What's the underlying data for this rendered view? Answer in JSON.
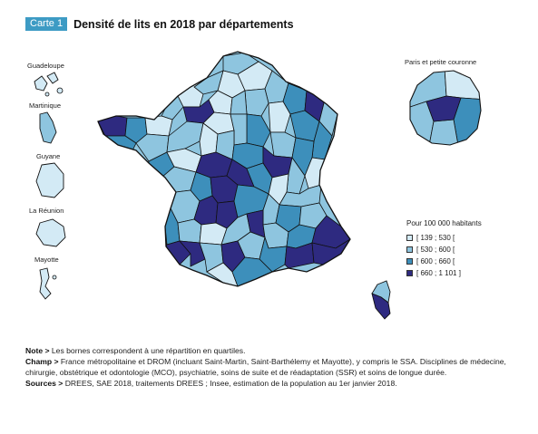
{
  "header": {
    "badge": "Carte 1",
    "title": "Densité de lits en 2018 par départements"
  },
  "insets": {
    "guadeloupe": "Guadeloupe",
    "martinique": "Martinique",
    "guyane": "Guyane",
    "reunion": "La Réunion",
    "mayotte": "Mayotte",
    "paris": "Paris et petite couronne"
  },
  "legend": {
    "title": "Pour 100 000 habitants",
    "items": [
      {
        "label": "[ 139 ; 530 [",
        "color": "#d3eaf5"
      },
      {
        "label": "[ 530 ; 600 [",
        "color": "#8ec5df"
      },
      {
        "label": "[ 600 ; 660 [",
        "color": "#3d8fbb"
      },
      {
        "label": "[ 660 ; 1 101 ]",
        "color": "#2e2a80"
      }
    ]
  },
  "notes": {
    "note_label": "Note >",
    "note_text": " Les bornes correspondent à une répartition en quartiles.",
    "champ_label": "Champ >",
    "champ_text": " France métropolitaine et DROM (incluant Saint-Martin, Saint-Barthélemy et Mayotte), y compris le SSA. Disciplines de médecine, chirurgie, obstétrique et odontologie (MCO), psychiatrie, soins de suite et de réadaptation (SSR) et soins de longue durée.",
    "sources_label": "Sources >",
    "sources_text": " DREES, SAE 2018, traitements DREES ; Insee, estimation de la population au 1er janvier 2018."
  }
}
